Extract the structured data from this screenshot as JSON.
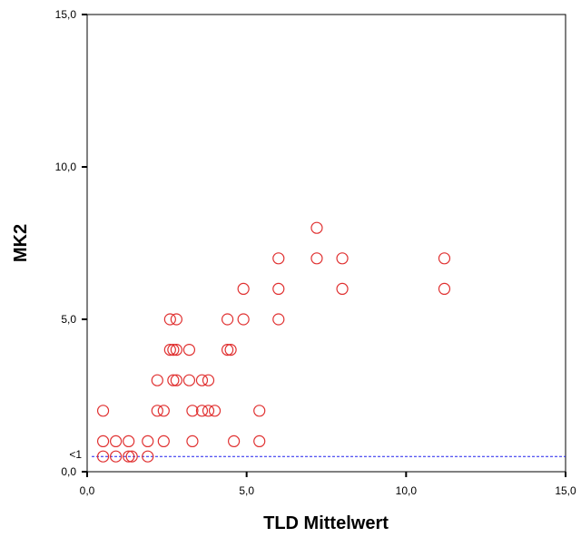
{
  "chart_data": {
    "type": "scatter",
    "title": "",
    "xlabel": "TLD Mittelwert",
    "ylabel": "MK2",
    "xlim": [
      0,
      15
    ],
    "ylim": [
      0,
      15
    ],
    "x_ticks": [
      0,
      5,
      10,
      15
    ],
    "y_ticks": [
      0,
      5,
      10,
      15
    ],
    "x_tick_labels": [
      "0,0",
      "5,0",
      "10,0",
      "15,0"
    ],
    "y_tick_labels": [
      "0,0",
      "5,0",
      "10,0",
      "15,0"
    ],
    "grid": false,
    "marker": "open-circle",
    "marker_color": "#e03030",
    "reference_line": {
      "y": 0.5,
      "label": "<1",
      "color": "#2020ee",
      "style": "dashed"
    },
    "points": [
      {
        "x": 0.5,
        "y": 2
      },
      {
        "x": 0.5,
        "y": 1
      },
      {
        "x": 0.5,
        "y": 0.5
      },
      {
        "x": 0.9,
        "y": 1
      },
      {
        "x": 0.9,
        "y": 0.5
      },
      {
        "x": 1.3,
        "y": 1
      },
      {
        "x": 1.3,
        "y": 0.5
      },
      {
        "x": 1.4,
        "y": 0.5
      },
      {
        "x": 1.9,
        "y": 1
      },
      {
        "x": 1.9,
        "y": 0.5
      },
      {
        "x": 2.2,
        "y": 3
      },
      {
        "x": 2.2,
        "y": 2
      },
      {
        "x": 2.4,
        "y": 2
      },
      {
        "x": 2.4,
        "y": 1
      },
      {
        "x": 2.6,
        "y": 5
      },
      {
        "x": 2.6,
        "y": 4
      },
      {
        "x": 2.7,
        "y": 4
      },
      {
        "x": 2.7,
        "y": 3
      },
      {
        "x": 2.8,
        "y": 5
      },
      {
        "x": 2.8,
        "y": 4
      },
      {
        "x": 2.8,
        "y": 3
      },
      {
        "x": 3.2,
        "y": 4
      },
      {
        "x": 3.2,
        "y": 3
      },
      {
        "x": 3.3,
        "y": 2
      },
      {
        "x": 3.3,
        "y": 1
      },
      {
        "x": 3.6,
        "y": 3
      },
      {
        "x": 3.6,
        "y": 2
      },
      {
        "x": 3.8,
        "y": 3
      },
      {
        "x": 3.8,
        "y": 2
      },
      {
        "x": 4.0,
        "y": 2
      },
      {
        "x": 4.4,
        "y": 5
      },
      {
        "x": 4.4,
        "y": 4
      },
      {
        "x": 4.5,
        "y": 4
      },
      {
        "x": 4.6,
        "y": 1
      },
      {
        "x": 4.9,
        "y": 6
      },
      {
        "x": 4.9,
        "y": 5
      },
      {
        "x": 5.4,
        "y": 2
      },
      {
        "x": 5.4,
        "y": 1
      },
      {
        "x": 6.0,
        "y": 7
      },
      {
        "x": 6.0,
        "y": 6
      },
      {
        "x": 6.0,
        "y": 5
      },
      {
        "x": 7.2,
        "y": 8
      },
      {
        "x": 7.2,
        "y": 7
      },
      {
        "x": 8.0,
        "y": 7
      },
      {
        "x": 8.0,
        "y": 6
      },
      {
        "x": 11.2,
        "y": 7
      },
      {
        "x": 11.2,
        "y": 6
      }
    ]
  }
}
